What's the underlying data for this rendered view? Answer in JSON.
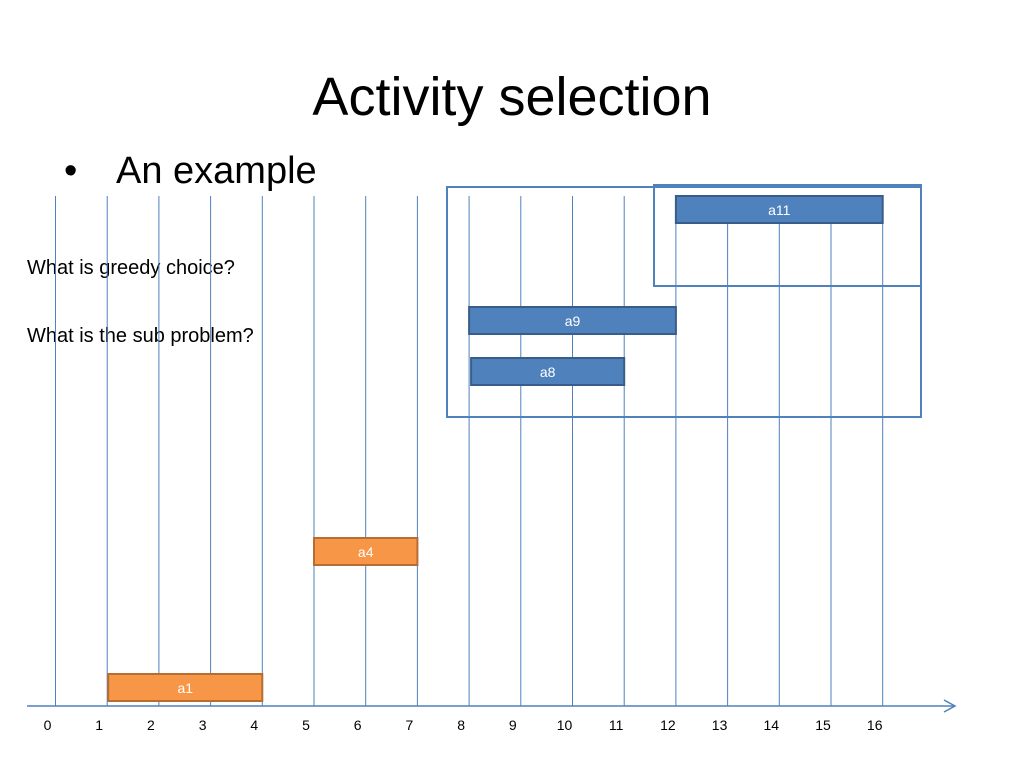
{
  "slide": {
    "title": "Activity selection",
    "bullet": "An example",
    "questions": [
      "What is greedy choice?",
      "What is the sub problem?"
    ]
  },
  "timeline": {
    "min": 0,
    "max": 16,
    "ticks": [
      0,
      1,
      2,
      3,
      4,
      5,
      6,
      7,
      8,
      9,
      10,
      11,
      12,
      13,
      14,
      15,
      16
    ]
  },
  "activities": [
    {
      "name": "a1",
      "start": 1,
      "finish": 4,
      "color": "#f79646",
      "border": "#b66d31"
    },
    {
      "name": "a4",
      "start": 5,
      "finish": 7,
      "color": "#f79646",
      "border": "#b66d31"
    },
    {
      "name": "a8",
      "start": 8,
      "finish": 11,
      "color": "#4f81bd",
      "border": "#385d8a"
    },
    {
      "name": "a9",
      "start": 8,
      "finish": 12,
      "color": "#4f81bd",
      "border": "#385d8a"
    },
    {
      "name": "a11",
      "start": 12,
      "finish": 16,
      "color": "#4f81bd",
      "border": "#385d8a"
    }
  ],
  "colors": {
    "gridline": "#4f81bd",
    "axis": "#4f81bd",
    "frame": "#4f81bd",
    "bar_text": "#ffffff"
  }
}
